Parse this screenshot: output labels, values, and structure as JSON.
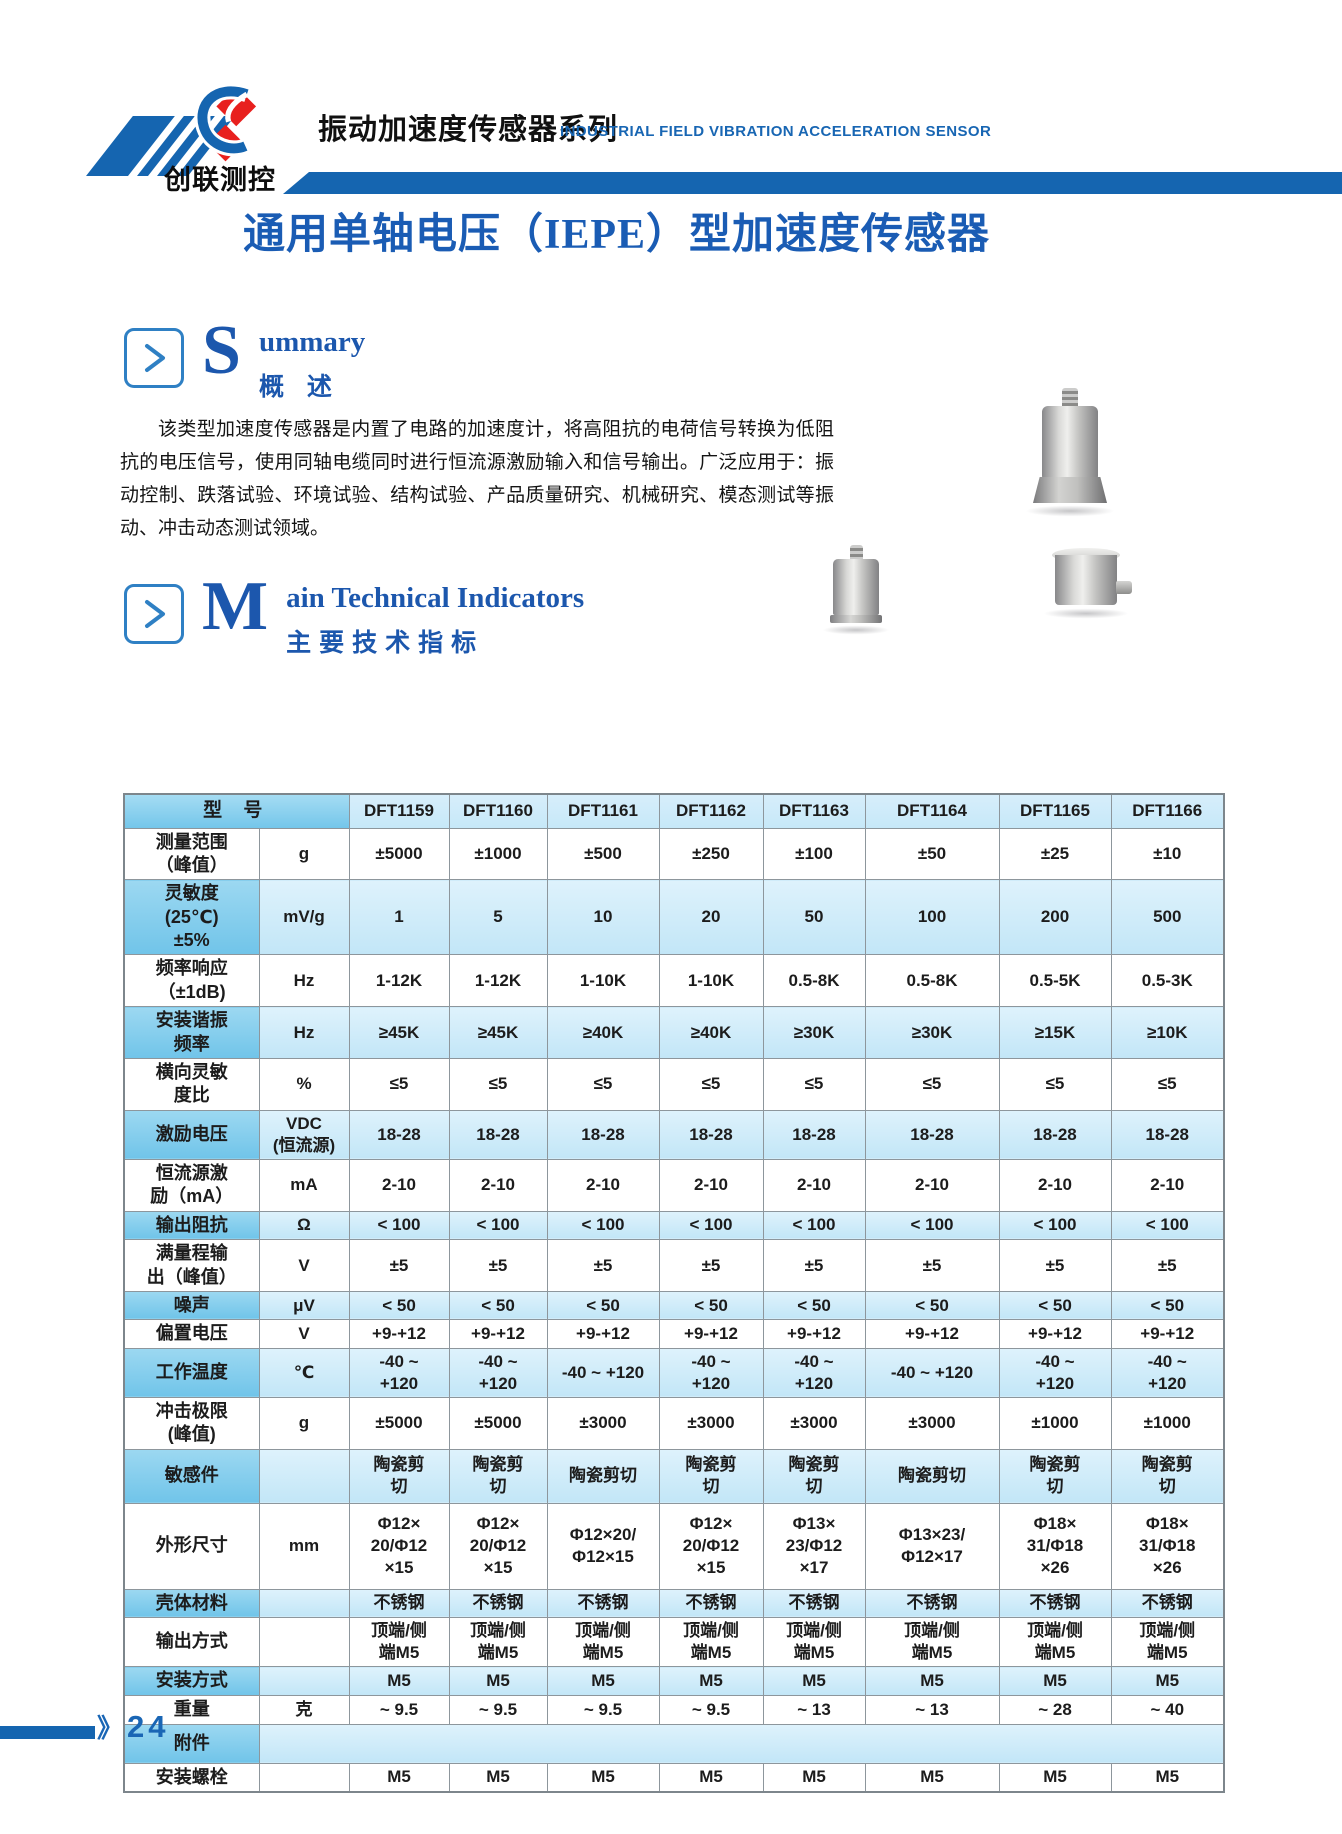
{
  "header": {
    "brand": "创联测控",
    "series_title_cn": "振动加速度传感器系列",
    "series_title_en": "INDUSTRIAL FIELD VIBRATION ACCELERATION SENSOR"
  },
  "page_title": "通用单轴电压（IEPE）型加速度传感器",
  "summary": {
    "big_letter": "S",
    "title_en_rest": "ummary",
    "title_cn": "概 述",
    "paragraph": "该类型加速度传感器是内置了电路的加速度计，将高阻抗的电荷信号转换为低阻抗的电压信号，使用同轴电缆同时进行恒流源激励输入和信号输出。广泛应用于：振动控制、跌落试验、环境试验、结构试验、产品质量研究、机械研究、模态测试等振动、冲击动态测试领域。"
  },
  "indicators": {
    "big_letter": "M",
    "title_en_rest": "ain Technical Indicators",
    "title_cn": "主要技术指标"
  },
  "table": {
    "header_label": "型 号",
    "models": [
      "DFT1159",
      "DFT1160",
      "DFT1161",
      "DFT1162",
      "DFT1163",
      "DFT1164",
      "DFT1165",
      "DFT1166"
    ],
    "rows": [
      {
        "label": "测量范围\n（峰值）",
        "unit": "g",
        "values": [
          "±5000",
          "±1000",
          "±500",
          "±250",
          "±100",
          "±50",
          "±25",
          "±10"
        ],
        "highlight": false
      },
      {
        "label": "灵敏度\n(25℃)\n±5%",
        "unit": "mV/g",
        "values": [
          "1",
          "5",
          "10",
          "20",
          "50",
          "100",
          "200",
          "500"
        ],
        "highlight": true
      },
      {
        "label": "频率响应\n（±1dB)",
        "unit": "Hz",
        "values": [
          "1-12K",
          "1-12K",
          "1-10K",
          "1-10K",
          "0.5-8K",
          "0.5-8K",
          "0.5-5K",
          "0.5-3K"
        ],
        "highlight": false
      },
      {
        "label": "安装谐振\n频率",
        "unit": "Hz",
        "values": [
          "≥45K",
          "≥45K",
          "≥40K",
          "≥40K",
          "≥30K",
          "≥30K",
          "≥15K",
          "≥10K"
        ],
        "highlight": true
      },
      {
        "label": "横向灵敏\n度比",
        "unit": "%",
        "values": [
          "≤5",
          "≤5",
          "≤5",
          "≤5",
          "≤5",
          "≤5",
          "≤5",
          "≤5"
        ],
        "highlight": false
      },
      {
        "label": "激励电压",
        "unit": "VDC\n(恒流源)",
        "values": [
          "18-28",
          "18-28",
          "18-28",
          "18-28",
          "18-28",
          "18-28",
          "18-28",
          "18-28"
        ],
        "highlight": true
      },
      {
        "label": "恒流源激\n励（mA）",
        "unit": "mA",
        "values": [
          "2-10",
          "2-10",
          "2-10",
          "2-10",
          "2-10",
          "2-10",
          "2-10",
          "2-10"
        ],
        "highlight": false
      },
      {
        "label": "输出阻抗",
        "unit": "Ω",
        "values": [
          "< 100",
          "< 100",
          "< 100",
          "< 100",
          "< 100",
          "< 100",
          "< 100",
          "< 100"
        ],
        "highlight": true
      },
      {
        "label": "满量程输\n出（峰值）",
        "unit": "V",
        "values": [
          "±5",
          "±5",
          "±5",
          "±5",
          "±5",
          "±5",
          "±5",
          "±5"
        ],
        "highlight": false
      },
      {
        "label": "噪声",
        "unit": "μV",
        "values": [
          "< 50",
          "< 50",
          "< 50",
          "< 50",
          "< 50",
          "< 50",
          "< 50",
          "< 50"
        ],
        "highlight": true
      },
      {
        "label": "偏置电压",
        "unit": "V",
        "values": [
          "+9-+12",
          "+9-+12",
          "+9-+12",
          "+9-+12",
          "+9-+12",
          "+9-+12",
          "+9-+12",
          "+9-+12"
        ],
        "highlight": false
      },
      {
        "label": "工作温度",
        "unit": "℃",
        "values": [
          "-40 ~\n+120",
          "-40 ~\n+120",
          "-40 ~ +120",
          "-40 ~\n+120",
          "-40 ~\n+120",
          "-40 ~ +120",
          "-40 ~\n+120",
          "-40 ~\n+120"
        ],
        "highlight": true
      },
      {
        "label": "冲击极限\n(峰值)",
        "unit": "g",
        "values": [
          "±5000",
          "±5000",
          "±3000",
          "±3000",
          "±3000",
          "±3000",
          "±1000",
          "±1000"
        ],
        "highlight": false
      },
      {
        "label": "敏感件",
        "unit": "",
        "values": [
          "陶瓷剪\n切",
          "陶瓷剪\n切",
          "陶瓷剪切",
          "陶瓷剪\n切",
          "陶瓷剪\n切",
          "陶瓷剪切",
          "陶瓷剪\n切",
          "陶瓷剪\n切"
        ],
        "highlight": true
      },
      {
        "label": "外形尺寸",
        "unit": "mm",
        "values": [
          "Φ12×\n20/Φ12\n×15",
          "Φ12×\n20/Φ12\n×15",
          "Φ12×20/\nΦ12×15",
          "Φ12×\n20/Φ12\n×15",
          "Φ13×\n23/Φ12\n×17",
          "Φ13×23/\nΦ12×17",
          "Φ18×\n31/Φ18\n×26",
          "Φ18×\n31/Φ18\n×26"
        ],
        "highlight": false
      },
      {
        "label": "壳体材料",
        "unit": "",
        "values": [
          "不锈钢",
          "不锈钢",
          "不锈钢",
          "不锈钢",
          "不锈钢",
          "不锈钢",
          "不锈钢",
          "不锈钢"
        ],
        "highlight": true
      },
      {
        "label": "输出方式",
        "unit": "",
        "values": [
          "顶端/侧\n端M5",
          "顶端/侧\n端M5",
          "顶端/侧\n端M5",
          "顶端/侧\n端M5",
          "顶端/侧\n端M5",
          "顶端/侧\n端M5",
          "顶端/侧\n端M5",
          "顶端/侧\n端M5"
        ],
        "highlight": false
      },
      {
        "label": "安装方式",
        "unit": "",
        "values": [
          "M5",
          "M5",
          "M5",
          "M5",
          "M5",
          "M5",
          "M5",
          "M5"
        ],
        "highlight": true
      },
      {
        "label": "重量",
        "unit": "克",
        "values": [
          "~ 9.5",
          "~ 9.5",
          "~ 9.5",
          "~ 9.5",
          "~ 13",
          "~ 13",
          "~ 28",
          "~ 40"
        ],
        "highlight": false
      },
      {
        "label": "附件",
        "unit": "",
        "values": [],
        "merged": true,
        "highlight": true
      },
      {
        "label": "安装螺栓",
        "unit": "",
        "values": [
          "M5",
          "M5",
          "M5",
          "M5",
          "M5",
          "M5",
          "M5",
          "M5"
        ],
        "highlight": false
      }
    ]
  },
  "footer": {
    "marker": "》",
    "page_number": "24"
  },
  "colors": {
    "brand_blue": "#1565b0",
    "title_blue": "#1a5cb4",
    "table_strong_blue": "#74c6ea",
    "table_light_blue": "#c6e8f8",
    "border_gray": "#8d969c"
  }
}
